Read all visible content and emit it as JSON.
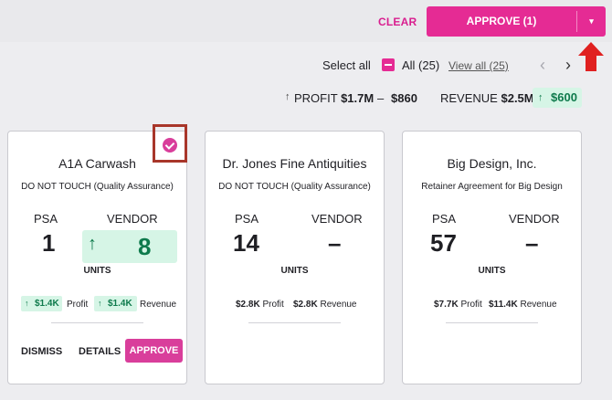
{
  "header": {
    "clear_label": "CLEAR",
    "approve_label": "APPROVE (1)"
  },
  "toolbar": {
    "select_all_label": "Select all",
    "all_label": "All (25)",
    "view_all_label": "View all (25)"
  },
  "summary": {
    "profit_label": "PROFIT",
    "profit_value": "$1.7M",
    "profit_separator": "–",
    "profit_change": "$860",
    "revenue_label": "REVENUE",
    "revenue_value": "$2.5M",
    "revenue_change": "$600"
  },
  "cards": [
    {
      "title": "A1A Carwash",
      "subtitle": "DO NOT TOUCH (Quality Assurance)",
      "psa_label": "PSA",
      "psa_value": "1",
      "vendor_label": "VENDOR",
      "vendor_value": "8",
      "units_label": "UNITS",
      "profit_value": "$1.4K",
      "profit_label": "Profit",
      "revenue_value": "$1.4K",
      "revenue_label": "Revenue",
      "selected": true,
      "actions": {
        "dismiss": "DISMISS",
        "details": "DETAILS",
        "approve": "APPROVE"
      }
    },
    {
      "title": "Dr. Jones Fine Antiquities",
      "subtitle": "DO NOT TOUCH (Quality Assurance)",
      "psa_label": "PSA",
      "psa_value": "14",
      "vendor_label": "VENDOR",
      "vendor_value": "–",
      "units_label": "UNITS",
      "profit_value": "$2.8K",
      "profit_label": "Profit",
      "revenue_value": "$2.8K",
      "revenue_label": "Revenue"
    },
    {
      "title": "Big Design, Inc.",
      "subtitle": "Retainer Agreement for Big Design",
      "psa_label": "PSA",
      "psa_value": "57",
      "vendor_label": "VENDOR",
      "vendor_value": "–",
      "units_label": "UNITS",
      "profit_value": "$7.7K",
      "profit_label": "Profit",
      "revenue_value": "$11.4K",
      "revenue_label": "Revenue"
    }
  ],
  "icons": {
    "up_arrow": "arrow-up-icon",
    "check": "check-icon",
    "chevron": "chevron-down-icon",
    "nav_prev": "chevron-left-icon",
    "nav_next": "chevron-right-icon"
  },
  "colors": {
    "accent": "#e52b94",
    "positive_bg": "#d6f5e6",
    "positive_text": "#0e7a4c",
    "annotation_red": "#a8362a"
  }
}
